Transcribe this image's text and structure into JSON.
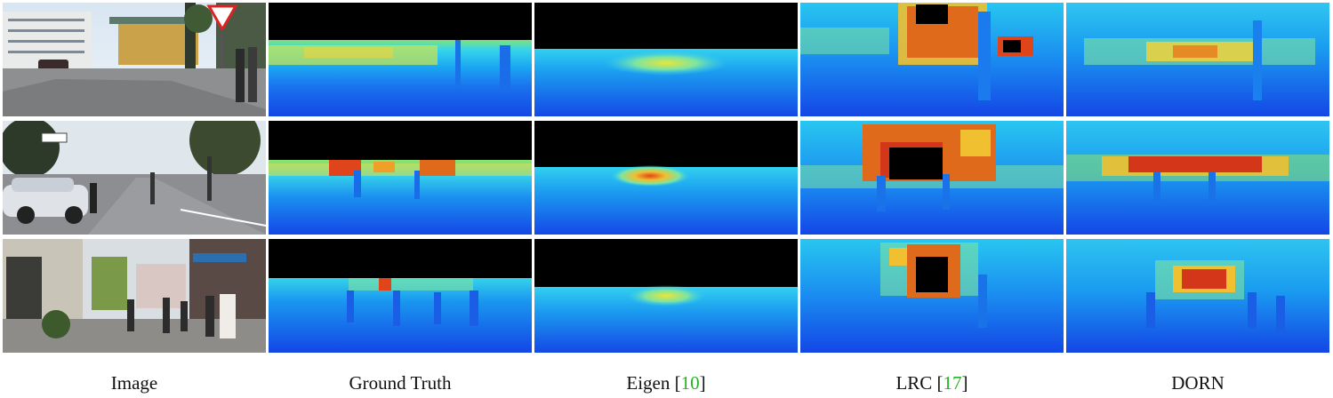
{
  "columns": [
    {
      "name": "Image",
      "citation": ""
    },
    {
      "name": "Ground Truth",
      "citation": ""
    },
    {
      "name": "Eigen [",
      "citation": "10",
      "close": "]"
    },
    {
      "name": "LRC [",
      "citation": "17",
      "close": "]"
    },
    {
      "name": "DORN",
      "citation": ""
    }
  ],
  "rows": [
    {
      "scene": "street-with-yield-sign-and-buildings"
    },
    {
      "scene": "intersection-with-car-and-pedestrians"
    },
    {
      "scene": "pedestrian-shopping-street"
    }
  ],
  "colors": {
    "citation_green": "#22b422",
    "depth_far": "#d4361a",
    "depth_near": "#1648e8",
    "depth_mid": "#22d6f2",
    "missing_depth": "#000000"
  }
}
